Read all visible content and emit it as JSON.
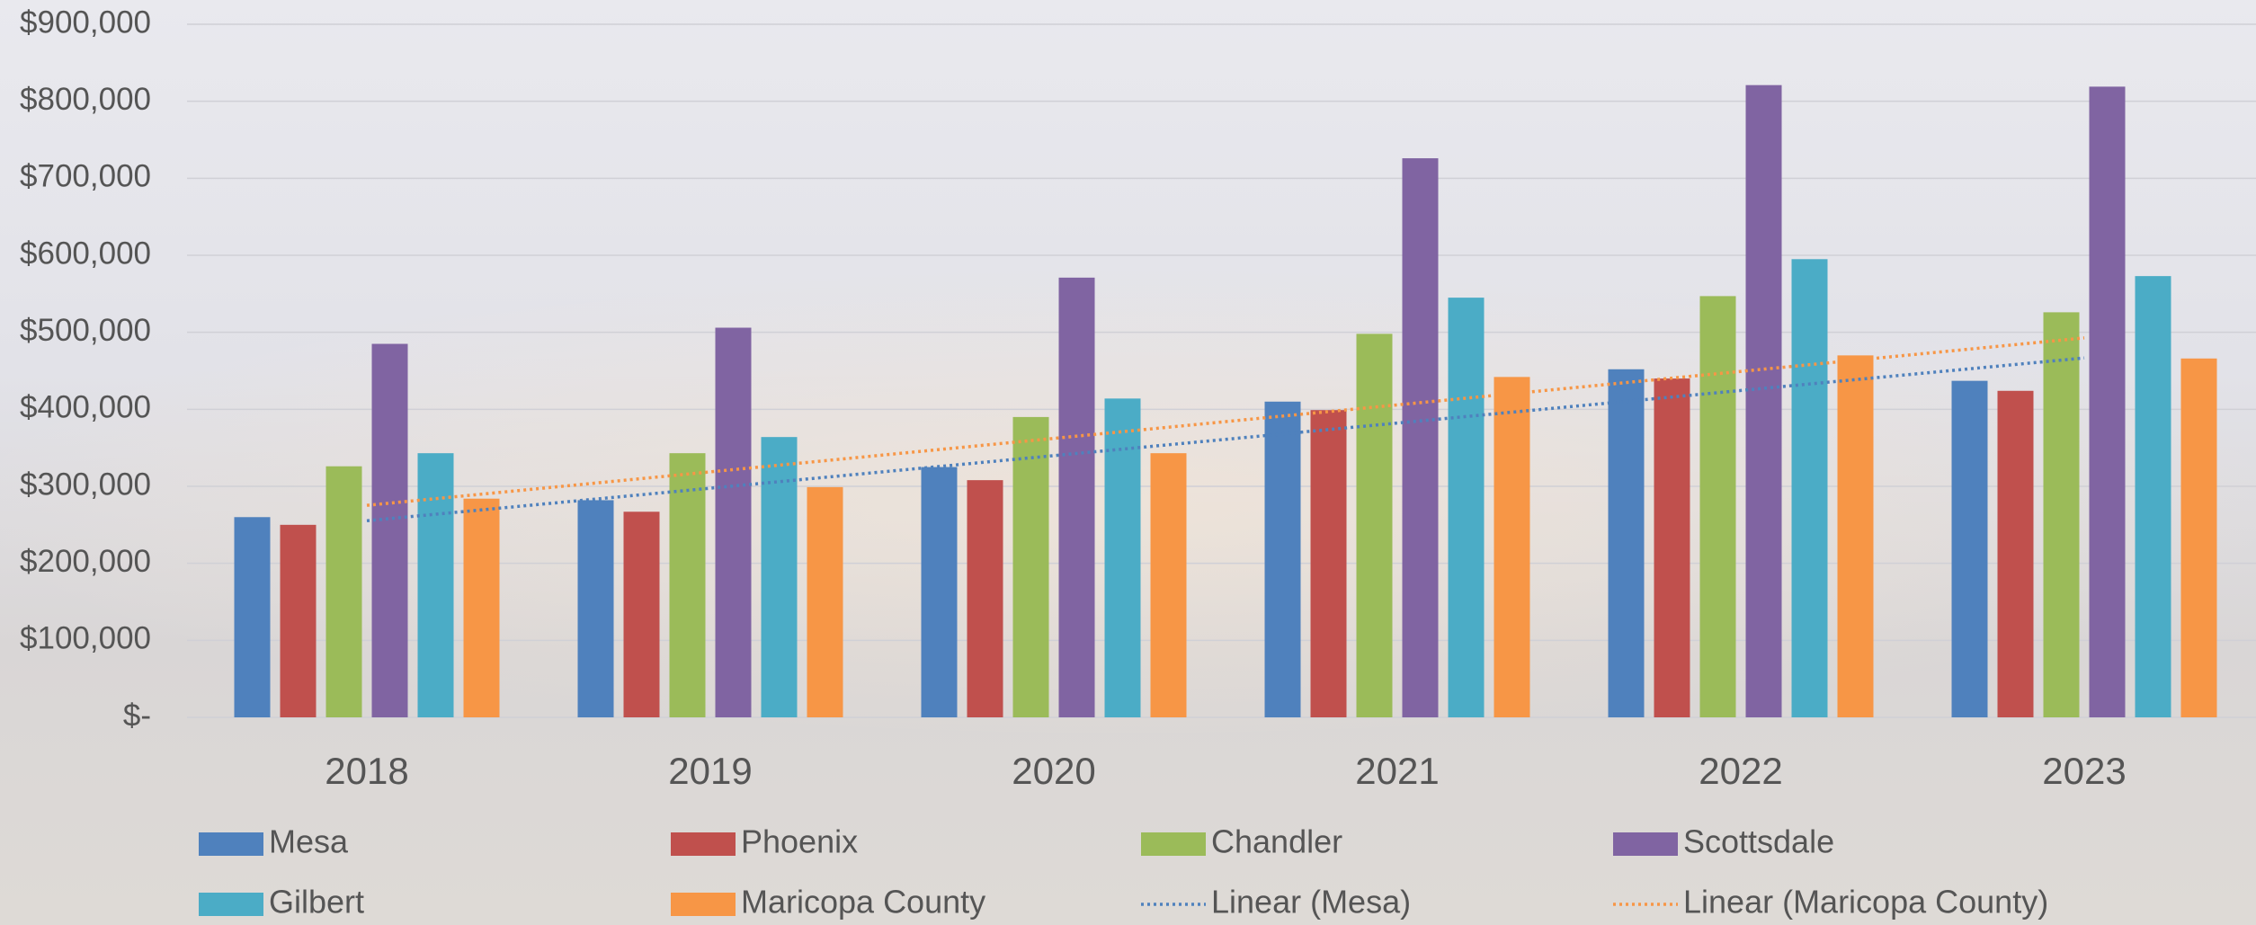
{
  "chart_data": {
    "type": "bar",
    "categories": [
      "2018",
      "2019",
      "2020",
      "2021",
      "2022",
      "2023"
    ],
    "series": [
      {
        "name": "Mesa",
        "color": "#4f81bd",
        "values": [
          260000,
          282000,
          325000,
          410000,
          452000,
          437000
        ],
        "trendline": {
          "name": "Linear (Mesa)"
        }
      },
      {
        "name": "Phoenix",
        "color": "#c0504d",
        "values": [
          250000,
          267000,
          308000,
          399000,
          440000,
          424000
        ]
      },
      {
        "name": "Chandler",
        "color": "#9bbb59",
        "values": [
          326000,
          343000,
          390000,
          498000,
          547000,
          526000
        ]
      },
      {
        "name": "Scottsdale",
        "color": "#8064a2",
        "values": [
          485000,
          506000,
          571000,
          726000,
          821000,
          819000
        ]
      },
      {
        "name": "Gilbert",
        "color": "#4bacc6",
        "values": [
          343000,
          364000,
          414000,
          545000,
          595000,
          573000
        ]
      },
      {
        "name": "Maricopa County",
        "color": "#f79646",
        "values": [
          284000,
          299000,
          343000,
          442000,
          470000,
          466000
        ],
        "trendline": {
          "name": "Linear (Maricopa County)"
        }
      }
    ],
    "ylim": [
      0,
      900000
    ],
    "yticks": [
      {
        "value": 0,
        "label": "$-"
      },
      {
        "value": 100000,
        "label": "$100,000"
      },
      {
        "value": 200000,
        "label": "$200,000"
      },
      {
        "value": 300000,
        "label": "$300,000"
      },
      {
        "value": 400000,
        "label": "$400,000"
      },
      {
        "value": 500000,
        "label": "$500,000"
      },
      {
        "value": 600000,
        "label": "$600,000"
      },
      {
        "value": 700000,
        "label": "$700,000"
      },
      {
        "value": 800000,
        "label": "$800,000"
      },
      {
        "value": 900000,
        "label": "$900,000"
      }
    ],
    "grid": true,
    "legend": "bottom"
  }
}
